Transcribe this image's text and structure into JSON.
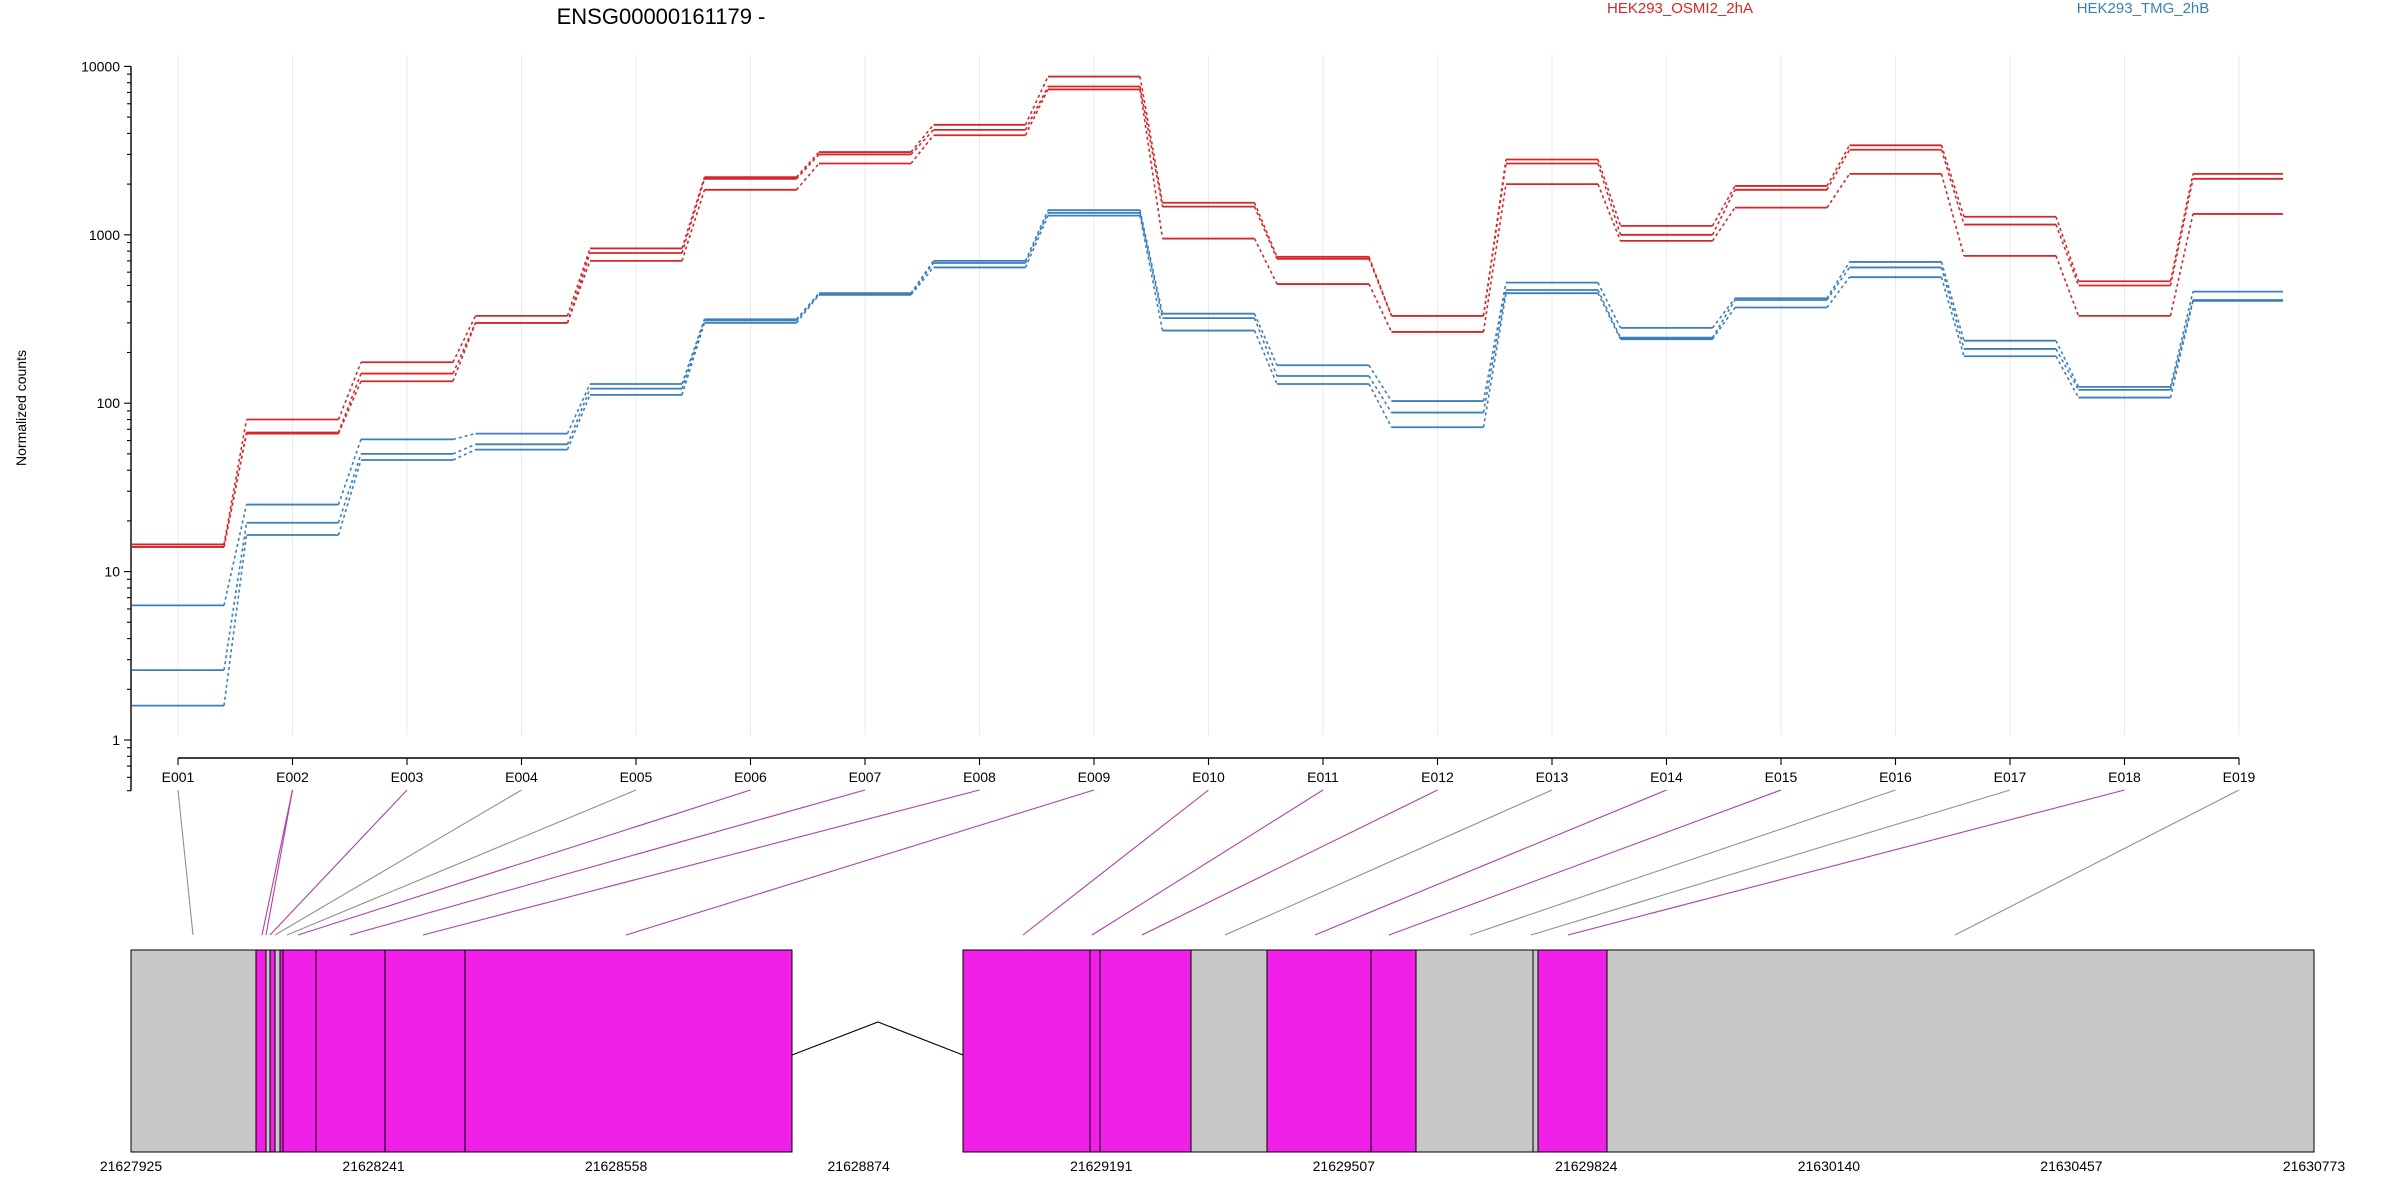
{
  "chart_data": {
    "type": "line",
    "title": "ENSG00000161179 -",
    "ylabel": "Normalized counts",
    "yscale": "log",
    "ylim": [
      0.5,
      10000
    ],
    "yticks": [
      "1",
      "10",
      "100",
      "1000",
      "10000"
    ],
    "grid": "vertical lines at each exon",
    "legend": "top-right",
    "categories": [
      "E001",
      "E002",
      "E003",
      "E004",
      "E005",
      "E006",
      "E007",
      "E008",
      "E009",
      "E010",
      "E011",
      "E012",
      "E013",
      "E014",
      "E015",
      "E016",
      "E017",
      "E018",
      "E019"
    ],
    "colors": {
      "HEK293_OSMI2_2hA": "#d7262a",
      "HEK293_TMG_2hB": "#3b7fbb"
    },
    "series": [
      {
        "group": "HEK293_OSMI2_2hA",
        "values": [
          14.5,
          80,
          175,
          330,
          830,
          2200,
          3100,
          4500,
          8700,
          1550,
          740,
          330,
          2800,
          1130,
          1950,
          3400,
          1280,
          530,
          2300
        ]
      },
      {
        "group": "HEK293_OSMI2_2hA",
        "values": [
          14,
          67,
          150,
          300,
          780,
          2150,
          3000,
          4200,
          7600,
          1470,
          720,
          330,
          2650,
          1000,
          1850,
          3200,
          1150,
          500,
          2150
        ]
      },
      {
        "group": "HEK293_OSMI2_2hA",
        "values": [
          14,
          66,
          135,
          300,
          700,
          1850,
          2650,
          3900,
          7300,
          950,
          510,
          265,
          2000,
          920,
          1450,
          2300,
          750,
          330,
          1330
        ]
      },
      {
        "group": "HEK293_TMG_2hB",
        "values": [
          6.3,
          25,
          61,
          66,
          130,
          315,
          450,
          700,
          1400,
          340,
          168,
          103,
          520,
          280,
          420,
          690,
          235,
          125,
          460
        ]
      },
      {
        "group": "HEK293_TMG_2hB",
        "values": [
          2.6,
          19.5,
          50,
          57,
          122,
          310,
          445,
          680,
          1350,
          320,
          145,
          88,
          470,
          245,
          410,
          640,
          210,
          120,
          410
        ]
      },
      {
        "group": "HEK293_TMG_2hB",
        "values": [
          1.6,
          16.5,
          46,
          53,
          112,
          300,
          440,
          640,
          1300,
          270,
          130,
          72,
          450,
          240,
          370,
          560,
          190,
          108,
          405
        ]
      }
    ]
  },
  "gene_model": {
    "coordinate_labels": [
      "21627925",
      "21628241",
      "21628558",
      "21628874",
      "21629191",
      "21629507",
      "21629824",
      "21630140",
      "21630457",
      "21630773"
    ],
    "region_colors": {
      "exonic_part": "#f020e8",
      "utr_part": "#c8c8c8",
      "connector_tested": "#b040a8",
      "connector_untested": "#909090"
    }
  }
}
